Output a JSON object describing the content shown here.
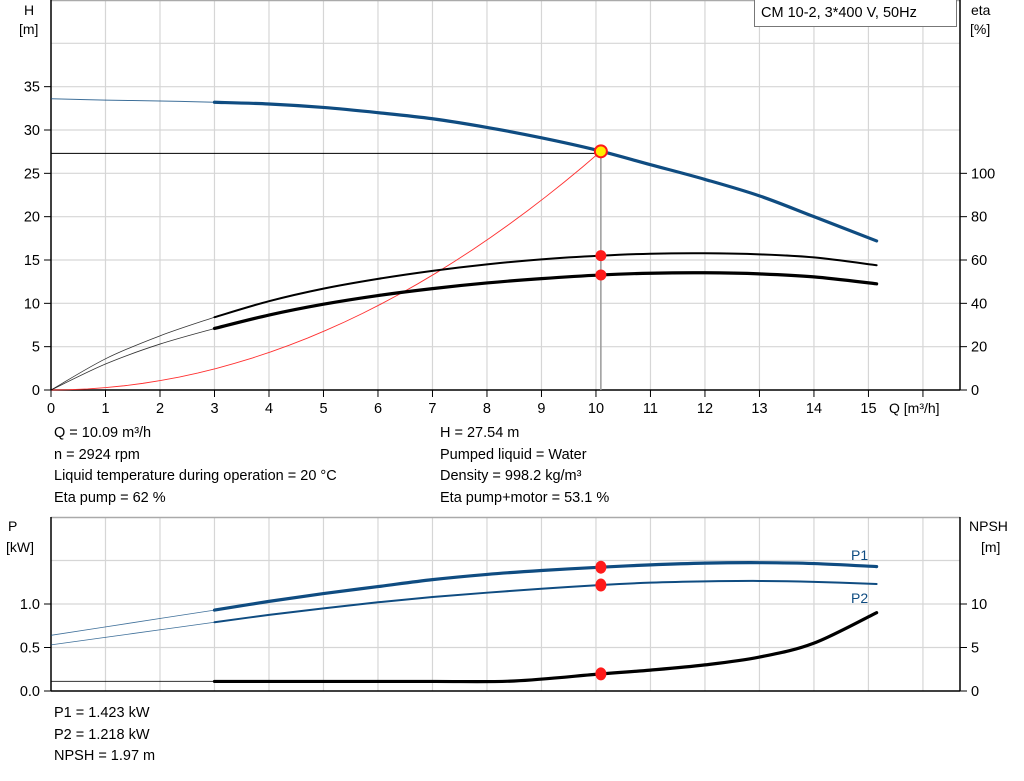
{
  "chart_data": [
    {
      "type": "line",
      "title": "CM 10-2, 3*400 V, 50Hz",
      "xlabel": "Q [m³/h]",
      "ylabel": [
        "H",
        "[m]"
      ],
      "ylabel_right": [
        "eta",
        "[%]"
      ],
      "xlim": [
        0,
        16.68
      ],
      "ylim": [
        0,
        45
      ],
      "ylim_right": [
        0,
        180
      ],
      "xticks": [
        "0",
        "1",
        "2",
        "3",
        "4",
        "5",
        "6",
        "7",
        "8",
        "9",
        "10",
        "11",
        "12",
        "13",
        "14",
        "15"
      ],
      "yticks": [
        "0",
        "5",
        "10",
        "15",
        "20",
        "25",
        "30",
        "35"
      ],
      "yticks_right": [
        "0",
        "20",
        "40",
        "60",
        "80",
        "100"
      ],
      "grid": true,
      "rated_range": [
        3,
        15.15
      ],
      "duty_point": {
        "Q": 10.09,
        "H": 27.54,
        "eta_pump": 62,
        "eta_pump_motor": 53.1
      },
      "colors": {
        "head": "#0f4c81",
        "eta": "#000000",
        "system": "#ff3030",
        "marker": "#ff1a1a",
        "duty_fill": "#ffee00"
      },
      "series": [
        {
          "id": "head",
          "axis": "left",
          "points": [
            [
              0,
              33.6
            ],
            [
              1,
              33.45
            ],
            [
              2,
              33.35
            ],
            [
              3,
              33.2
            ],
            [
              4,
              33.0
            ],
            [
              5,
              32.6
            ],
            [
              6,
              32.0
            ],
            [
              7,
              31.3
            ],
            [
              8,
              30.3
            ],
            [
              9,
              29.1
            ],
            [
              10,
              27.7
            ],
            [
              11,
              26.0
            ],
            [
              12,
              24.3
            ],
            [
              13,
              22.4
            ],
            [
              14,
              20.0
            ],
            [
              15.15,
              17.2
            ]
          ]
        },
        {
          "id": "eta-pump",
          "axis": "right",
          "points": [
            [
              0,
              0
            ],
            [
              1,
              14.4
            ],
            [
              2,
              25
            ],
            [
              3,
              33.6
            ],
            [
              4,
              41
            ],
            [
              5,
              46.8
            ],
            [
              6,
              51.3
            ],
            [
              7,
              55
            ],
            [
              8,
              58
            ],
            [
              9,
              60.3
            ],
            [
              10.09,
              62
            ],
            [
              11,
              62.9
            ],
            [
              12,
              63.1
            ],
            [
              13,
              62.6
            ],
            [
              14,
              61.2
            ],
            [
              15.15,
              57.6
            ]
          ]
        },
        {
          "id": "eta-pump-motor",
          "axis": "right",
          "points": [
            [
              0,
              0
            ],
            [
              1,
              12
            ],
            [
              2,
              21.2
            ],
            [
              3,
              28.4
            ],
            [
              4,
              34.6
            ],
            [
              5,
              39.6
            ],
            [
              6,
              43.6
            ],
            [
              7,
              46.8
            ],
            [
              8,
              49.4
            ],
            [
              9,
              51.4
            ],
            [
              10.09,
              53.1
            ],
            [
              11,
              53.9
            ],
            [
              12,
              54.1
            ],
            [
              13,
              53.6
            ],
            [
              14,
              52.2
            ],
            [
              15.15,
              49
            ]
          ]
        },
        {
          "id": "system-curve",
          "axis": "left",
          "k": 0.2705,
          "q_max": 10.09
        }
      ]
    },
    {
      "type": "line",
      "ylabel": [
        "P",
        "[kW]"
      ],
      "ylabel_right": [
        "NPSH",
        "[m]"
      ],
      "xlim": [
        0,
        16.68
      ],
      "ylim": [
        0,
        2.0
      ],
      "ylim_right": [
        0,
        20
      ],
      "yticks": [
        "0.0",
        "0.5",
        "1.0"
      ],
      "yticks_right": [
        "0",
        "5",
        "10"
      ],
      "grid": true,
      "rated_range": [
        3,
        15.15
      ],
      "colors": {
        "P1": "#0f4c81",
        "P2": "#0f4c81",
        "NPSH": "#000000",
        "marker": "#ff1a1a"
      },
      "series": [
        {
          "id": "P1",
          "name": "P1",
          "axis": "left",
          "points": [
            [
              0,
              0.64
            ],
            [
              1.5,
              0.785
            ],
            [
              3,
              0.93
            ],
            [
              4,
              1.03
            ],
            [
              5,
              1.12
            ],
            [
              6,
              1.2
            ],
            [
              7,
              1.28
            ],
            [
              8,
              1.34
            ],
            [
              9,
              1.385
            ],
            [
              10.09,
              1.423
            ],
            [
              11,
              1.45
            ],
            [
              12,
              1.47
            ],
            [
              13,
              1.475
            ],
            [
              14,
              1.465
            ],
            [
              15.15,
              1.43
            ]
          ]
        },
        {
          "id": "P2",
          "name": "P2",
          "axis": "left",
          "points": [
            [
              0,
              0.53
            ],
            [
              1.5,
              0.66
            ],
            [
              3,
              0.79
            ],
            [
              4,
              0.875
            ],
            [
              5,
              0.95
            ],
            [
              6,
              1.02
            ],
            [
              7,
              1.08
            ],
            [
              8,
              1.13
            ],
            [
              9,
              1.175
            ],
            [
              10.09,
              1.218
            ],
            [
              11,
              1.245
            ],
            [
              12,
              1.26
            ],
            [
              13,
              1.265
            ],
            [
              14,
              1.255
            ],
            [
              15.15,
              1.23
            ]
          ]
        },
        {
          "id": "NPSH",
          "axis": "right",
          "points": [
            [
              0,
              1.1
            ],
            [
              3,
              1.1
            ],
            [
              5,
              1.1
            ],
            [
              7,
              1.1
            ],
            [
              8.5,
              1.15
            ],
            [
              10.09,
              1.97
            ],
            [
              11,
              2.4
            ],
            [
              12,
              3.0
            ],
            [
              13,
              3.9
            ],
            [
              14,
              5.5
            ],
            [
              15.15,
              9.0
            ]
          ]
        }
      ]
    }
  ],
  "info_top_left": [
    "Q = 10.09 m³/h",
    "n = 2924 rpm",
    "Liquid temperature during operation = 20 °C",
    "Eta pump = 62 %"
  ],
  "info_top_right": [
    "H = 27.54 m",
    "Pumped liquid = Water",
    "Density = 998.2 kg/m³",
    "Eta pump+motor = 53.1 %"
  ],
  "info_bottom": [
    "P1 = 1.423 kW",
    "P2 = 1.218 kW",
    "NPSH = 1.97 m"
  ]
}
